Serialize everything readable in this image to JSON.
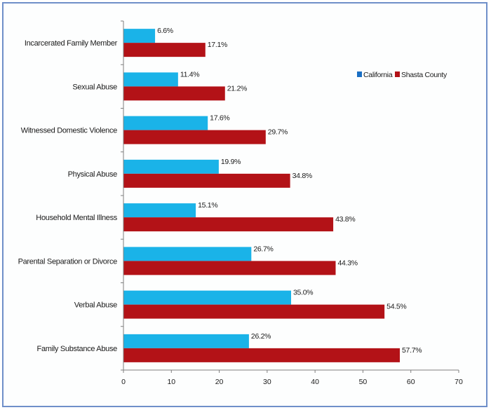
{
  "chart_data": {
    "type": "bar",
    "orientation": "horizontal",
    "categories": [
      "Incarcerated  Family Member",
      "Sexual Abuse",
      "Witnessed  Domestic Violence",
      "Physical Abuse",
      "Household  Mental Illness",
      "Parental  Separation  or Divorce",
      "Verbal Abuse",
      "Family Substance Abuse"
    ],
    "series": [
      {
        "name": "California",
        "color": "#1ab3e8",
        "values": [
          6.6,
          11.4,
          17.6,
          19.9,
          15.1,
          26.7,
          35.0,
          26.2
        ],
        "labels": [
          "6.6%",
          "11.4%",
          "17.6%",
          "19.9%",
          "15.1%",
          "26.7%",
          "35.0%",
          "26.2%"
        ]
      },
      {
        "name": "Shasta County",
        "color": "#b31217",
        "values": [
          17.1,
          21.2,
          29.7,
          34.8,
          43.8,
          44.3,
          54.5,
          57.7
        ],
        "labels": [
          "17.1%",
          "21.2%",
          "29.7%",
          "34.8%",
          "43.8%",
          "44.3%",
          "54.5%",
          "57.7%"
        ]
      }
    ],
    "xlim": [
      0,
      70
    ],
    "xticks": [
      0,
      10,
      20,
      30,
      40,
      50,
      60,
      70
    ],
    "legend_labels": [
      "California",
      "Shasta County"
    ],
    "legend_position": "top-right",
    "grid": false,
    "title": "",
    "xlabel": "",
    "ylabel": ""
  }
}
